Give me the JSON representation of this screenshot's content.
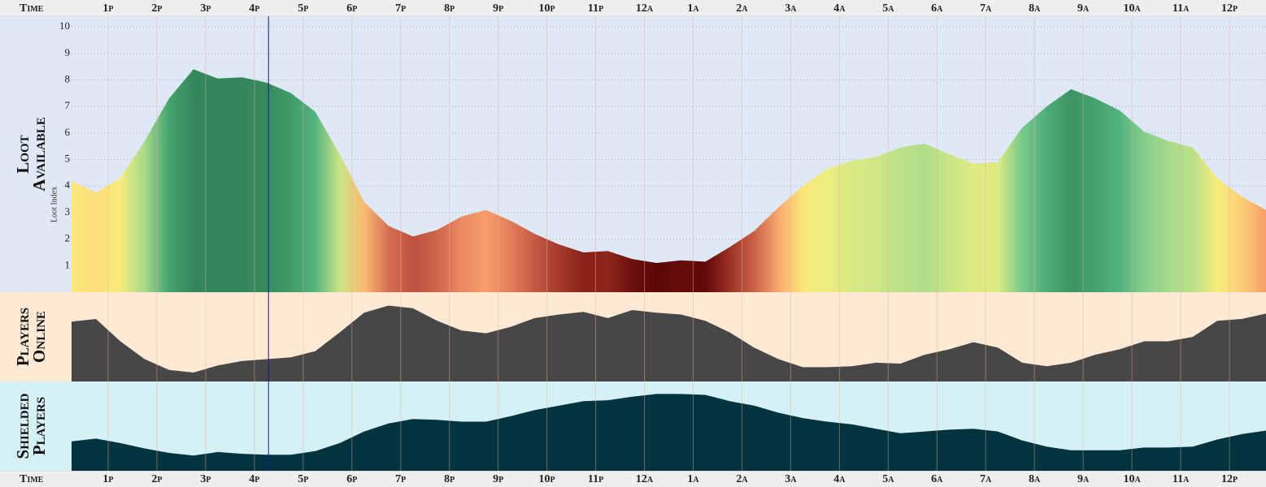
{
  "time_axis": {
    "label": "Time",
    "xlim": [
      12.25,
      36.75
    ],
    "xticks": [
      {
        "value": 13,
        "label": "1p"
      },
      {
        "value": 14,
        "label": "2p"
      },
      {
        "value": 15,
        "label": "3p"
      },
      {
        "value": 16,
        "label": "4p"
      },
      {
        "value": 17,
        "label": "5p"
      },
      {
        "value": 18,
        "label": "6p"
      },
      {
        "value": 19,
        "label": "7p"
      },
      {
        "value": 20,
        "label": "8p"
      },
      {
        "value": 21,
        "label": "9p"
      },
      {
        "value": 22,
        "label": "10p"
      },
      {
        "value": 23,
        "label": "11p"
      },
      {
        "value": 24,
        "label": "12a"
      },
      {
        "value": 25,
        "label": "1a"
      },
      {
        "value": 26,
        "label": "2a"
      },
      {
        "value": 27,
        "label": "3a"
      },
      {
        "value": 28,
        "label": "4a"
      },
      {
        "value": 29,
        "label": "5a"
      },
      {
        "value": 30,
        "label": "6a"
      },
      {
        "value": 31,
        "label": "7a"
      },
      {
        "value": 32,
        "label": "8a"
      },
      {
        "value": 33,
        "label": "9a"
      },
      {
        "value": 34,
        "label": "10a"
      },
      {
        "value": 35,
        "label": "11a"
      },
      {
        "value": 36,
        "label": "12p"
      }
    ],
    "x": [
      12.25,
      12.75,
      13.25,
      13.75,
      14.25,
      14.75,
      15.25,
      15.75,
      16.25,
      16.75,
      17.25,
      17.75,
      18.25,
      18.75,
      19.25,
      19.75,
      20.25,
      20.75,
      21.25,
      21.75,
      22.25,
      22.75,
      23.25,
      23.75,
      24.25,
      24.75,
      25.25,
      25.75,
      26.25,
      26.75,
      27.25,
      27.75,
      28.25,
      28.75,
      29.25,
      29.75,
      30.25,
      30.75,
      31.25,
      31.75,
      32.25,
      32.75,
      33.25,
      33.75,
      34.25,
      34.75,
      35.25,
      35.75,
      36.25,
      36.75
    ],
    "cursor": 16.29
  },
  "chart_data": [
    {
      "type": "area",
      "label": [
        "Loot",
        "Available"
      ],
      "ylabel": "Loot Index",
      "ylim": [
        0,
        10.4
      ],
      "yticks": [
        1,
        2,
        3,
        4,
        5,
        6,
        7,
        8,
        9,
        10
      ],
      "grid": true,
      "background": "#dfe9f5",
      "values": [
        4.2,
        3.75,
        4.3,
        5.7,
        7.3,
        8.4,
        8.05,
        8.1,
        7.9,
        7.5,
        6.8,
        5.2,
        3.4,
        2.5,
        2.1,
        2.35,
        2.85,
        3.1,
        2.7,
        2.2,
        1.8,
        1.5,
        1.55,
        1.25,
        1.1,
        1.2,
        1.15,
        1.7,
        2.3,
        3.2,
        4.0,
        4.65,
        4.95,
        5.1,
        5.45,
        5.6,
        5.2,
        4.85,
        4.9,
        6.2,
        7.0,
        7.65,
        7.3,
        6.85,
        6.05,
        5.7,
        5.45,
        4.3,
        3.6,
        3.1
      ],
      "color_scale": [
        {
          "value": 1.1,
          "color": "#5a0606"
        },
        {
          "value": 1.5,
          "color": "#8a2218"
        },
        {
          "value": 2.2,
          "color": "#c45a45"
        },
        {
          "value": 3.0,
          "color": "#f59468"
        },
        {
          "value": 3.8,
          "color": "#fde27a"
        },
        {
          "value": 4.5,
          "color": "#f5f07e"
        },
        {
          "value": 5.5,
          "color": "#b8e08a"
        },
        {
          "value": 6.5,
          "color": "#5cc08a"
        },
        {
          "value": 8.0,
          "color": "#33875a"
        }
      ]
    },
    {
      "type": "area",
      "label": [
        "Players",
        "Online"
      ],
      "ylim": [
        0,
        100
      ],
      "background": "#fde9d4",
      "color": "#474747",
      "values": [
        67,
        70,
        45,
        25,
        13,
        10,
        18,
        23,
        25,
        27,
        34,
        55,
        77,
        85,
        82,
        68,
        57,
        54,
        61,
        71,
        75,
        78,
        71,
        80,
        77,
        75,
        68,
        55,
        38,
        25,
        16,
        16,
        17,
        21,
        20,
        30,
        36,
        44,
        38,
        21,
        17,
        21,
        30,
        36,
        45,
        45,
        50,
        68,
        70,
        76
      ]
    },
    {
      "type": "area",
      "label": [
        "Shielded",
        "Players"
      ],
      "ylim": [
        0,
        100
      ],
      "background": "#d6f1f6",
      "color": "#02343f",
      "values": [
        33,
        36,
        31,
        25,
        20,
        17,
        21,
        19,
        18,
        18,
        22,
        31,
        44,
        53,
        58,
        57,
        55,
        55,
        61,
        68,
        73,
        78,
        79,
        83,
        86,
        86,
        85,
        78,
        73,
        65,
        59,
        55,
        52,
        47,
        42,
        44,
        46,
        47,
        44,
        34,
        27,
        23,
        23,
        23,
        26,
        26,
        27,
        35,
        41,
        45
      ]
    }
  ]
}
